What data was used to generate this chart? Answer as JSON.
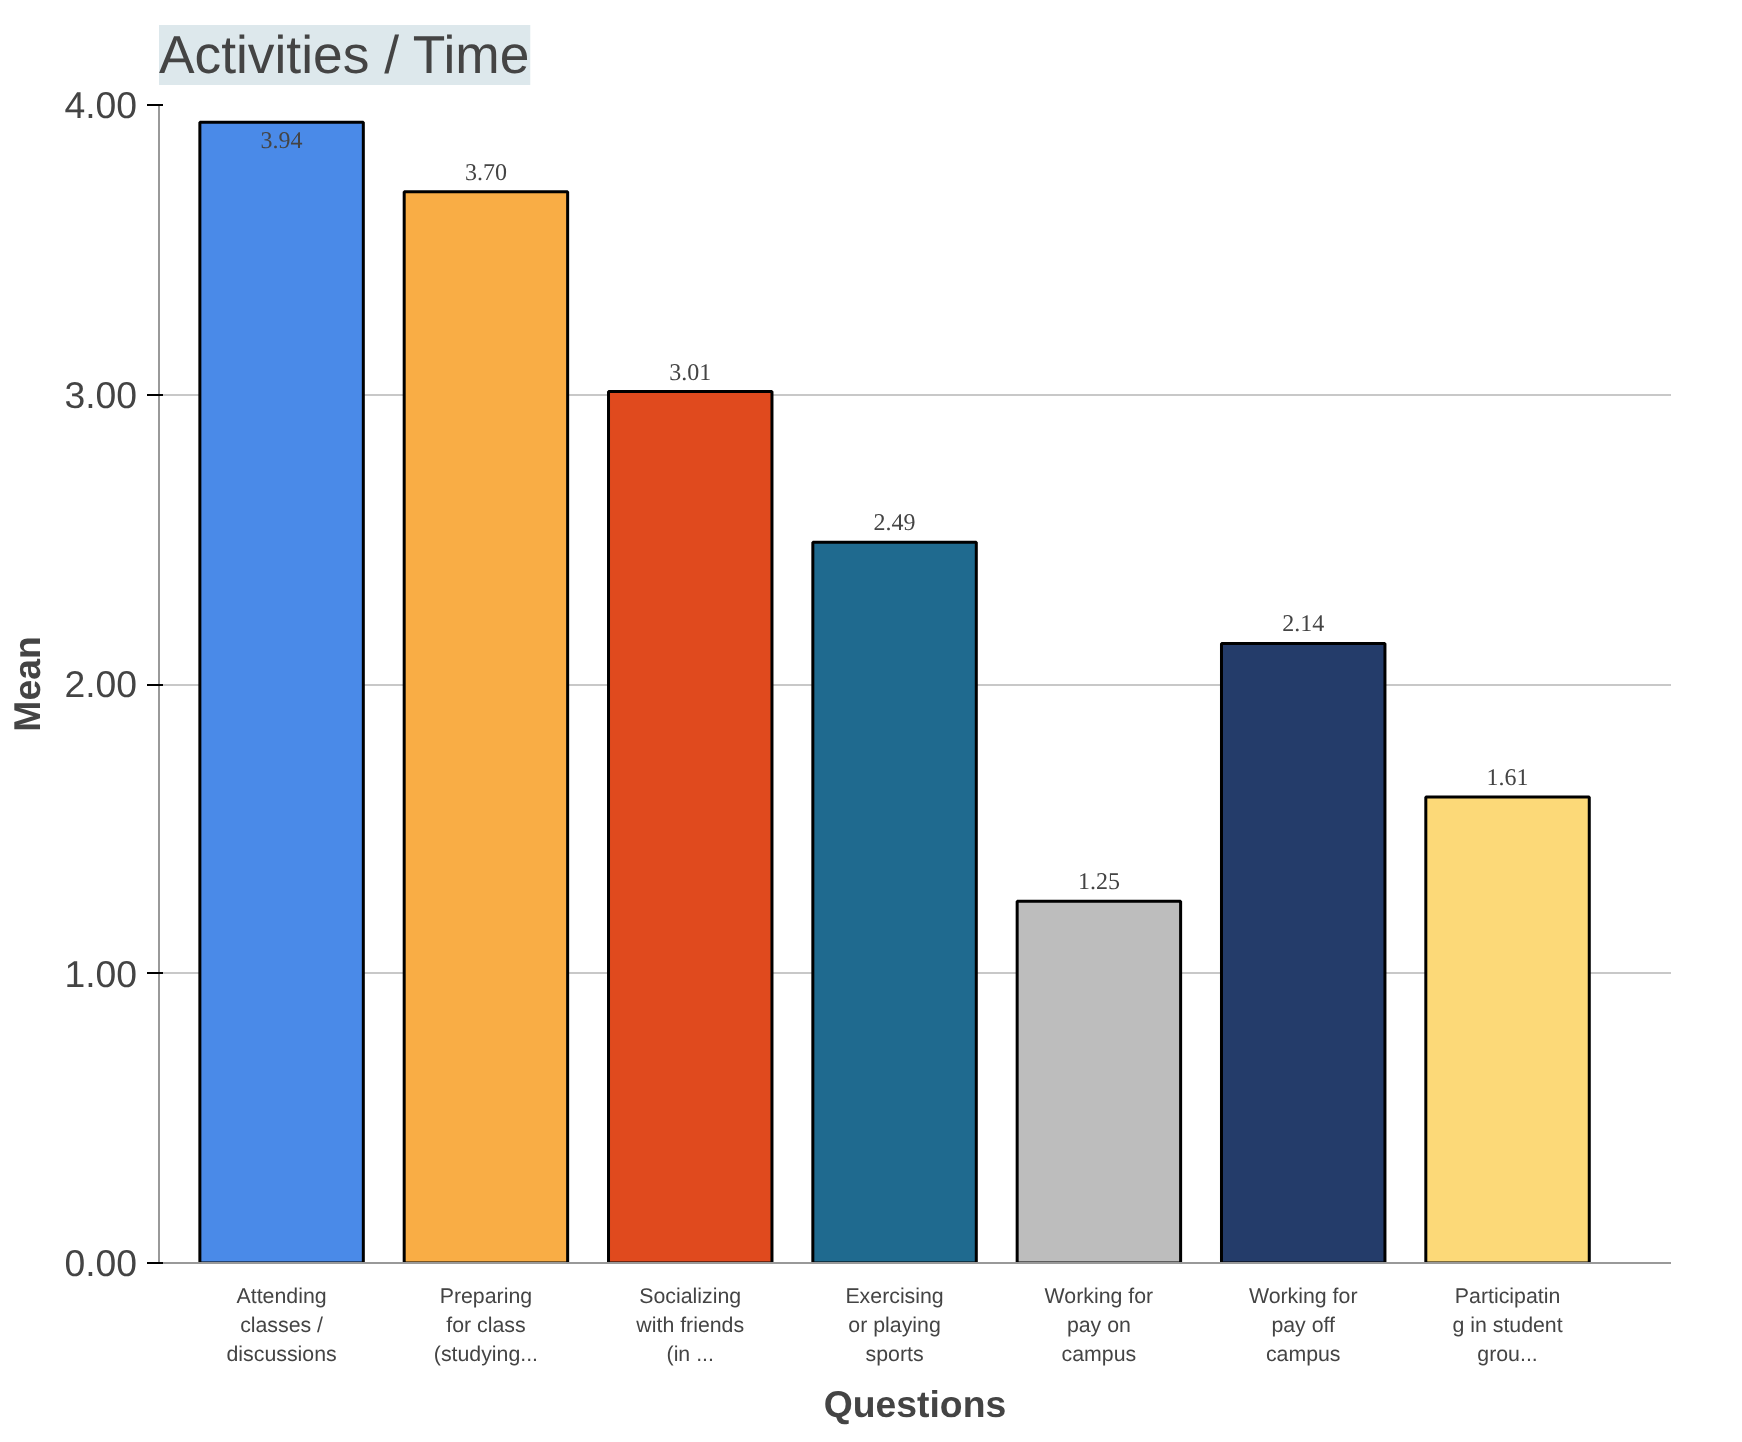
{
  "chart_data": {
    "type": "bar",
    "title": "Activities / Time",
    "xlabel": "Questions",
    "ylabel": "Mean",
    "categories": [
      "Attending\nclasses /\ndiscussions",
      "Preparing\nfor class\n(studying...",
      "Socializing\nwith friends\n(in ...",
      "Exercising\nor playing\nsports",
      "Working for\npay on\ncampus",
      "Working for\npay off\ncampus",
      "Participatin\ng in student\ngrou..."
    ],
    "values": [
      3.94,
      3.7,
      3.01,
      2.49,
      1.25,
      2.14,
      1.61
    ],
    "colors": [
      "#4a8ae8",
      "#f9ad45",
      "#e04a1e",
      "#1f6a8f",
      "#bdbdbd",
      "#243c6a",
      "#fcd978"
    ],
    "value_labels": [
      "3.94",
      "3.70",
      "3.01",
      "2.49",
      "1.25",
      "2.14",
      "1.61"
    ],
    "ylim": [
      0,
      4
    ],
    "yticks": [
      {
        "value": 0,
        "label": "0.00"
      },
      {
        "value": 1,
        "label": "1.00"
      },
      {
        "value": 2,
        "label": "2.00"
      },
      {
        "value": 3,
        "label": "3.00"
      },
      {
        "value": 4,
        "label": "4.00"
      }
    ],
    "grid": "y"
  }
}
